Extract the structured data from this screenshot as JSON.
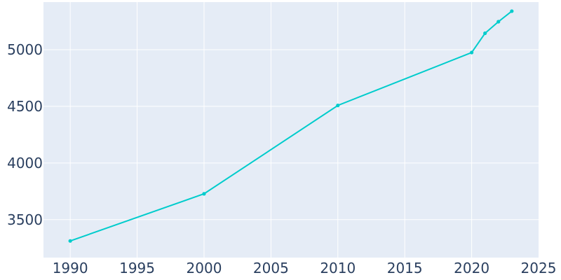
{
  "chart_data": {
    "type": "line",
    "title": "",
    "xlabel": "",
    "ylabel": "",
    "xlim": [
      1988,
      2025
    ],
    "ylim": [
      3165,
      5420
    ],
    "x_ticks": [
      1990,
      1995,
      2000,
      2005,
      2010,
      2015,
      2020,
      2025
    ],
    "y_ticks": [
      3500,
      4000,
      4500,
      5000
    ],
    "grid": true,
    "legend": "none",
    "colors": {
      "plot_background": "#e5ecf6",
      "line": "#00cccc",
      "tick_text": "#2a3f5f",
      "grid": "#ffffff"
    },
    "series": [
      {
        "x": [
          1990,
          2000,
          2010,
          2020,
          2021,
          2022,
          2023
        ],
        "y": [
          3312,
          3728,
          4508,
          4975,
          5145,
          5247,
          5340
        ]
      }
    ]
  }
}
